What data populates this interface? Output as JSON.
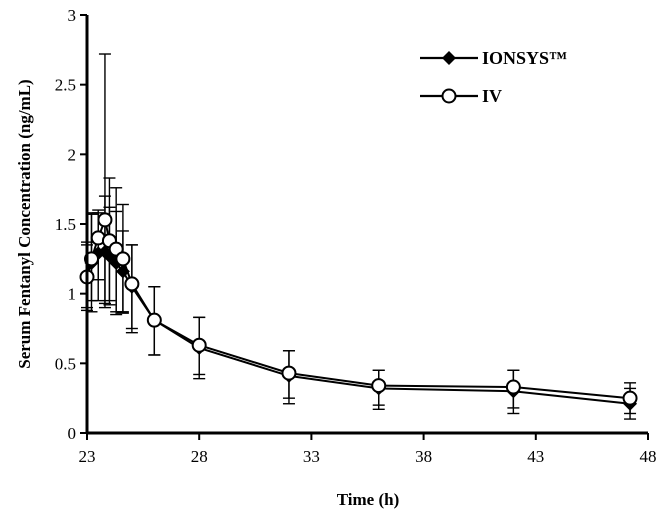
{
  "chart_data": {
    "type": "line",
    "xlabel": "Time (h)",
    "ylabel": "Serum Fentanyl Concentration (ng/mL)",
    "xlim": [
      23,
      48
    ],
    "ylim": [
      0,
      3
    ],
    "xticks": [
      "23",
      "28",
      "33",
      "38",
      "43",
      "48"
    ],
    "yticks": [
      "0",
      "0.5",
      "1",
      "1.5",
      "2",
      "2.5",
      "3"
    ],
    "grid": false,
    "legend_position": "top-right",
    "series": [
      {
        "name": "IONSYS™",
        "marker": "filled-diamond",
        "x": [
          23.0,
          23.2,
          23.5,
          23.8,
          24.0,
          24.3,
          24.6,
          25.0,
          26.0,
          28.0,
          32.0,
          36.0,
          42.0,
          47.2
        ],
        "y": [
          1.13,
          1.22,
          1.29,
          1.3,
          1.27,
          1.22,
          1.16,
          1.05,
          0.81,
          0.61,
          0.41,
          0.32,
          0.3,
          0.21
        ],
        "y_low": [
          0.9,
          0.87,
          0.95,
          0.9,
          0.92,
          0.85,
          0.87,
          0.72,
          0.56,
          0.39,
          0.21,
          0.17,
          0.14,
          0.1
        ],
        "y_high": [
          1.37,
          1.57,
          1.6,
          1.7,
          1.62,
          1.59,
          1.45,
          1.35,
          1.05,
          0.83,
          0.59,
          0.45,
          0.45,
          0.32
        ]
      },
      {
        "name": "IV",
        "marker": "open-circle",
        "x": [
          23.0,
          23.2,
          23.5,
          23.8,
          24.0,
          24.3,
          24.6,
          25.0,
          26.0,
          28.0,
          32.0,
          36.0,
          42.0,
          47.2
        ],
        "y": [
          1.12,
          1.25,
          1.4,
          1.53,
          1.38,
          1.32,
          1.25,
          1.07,
          0.81,
          0.63,
          0.43,
          0.34,
          0.33,
          0.25
        ],
        "y_low": [
          0.88,
          0.95,
          1.1,
          0.93,
          0.95,
          0.87,
          0.86,
          0.75,
          0.56,
          0.42,
          0.25,
          0.2,
          0.18,
          0.14
        ],
        "y_high": [
          1.35,
          1.58,
          1.58,
          2.72,
          1.83,
          1.76,
          1.64,
          1.35,
          1.05,
          0.83,
          0.59,
          0.45,
          0.45,
          0.36
        ]
      }
    ]
  }
}
